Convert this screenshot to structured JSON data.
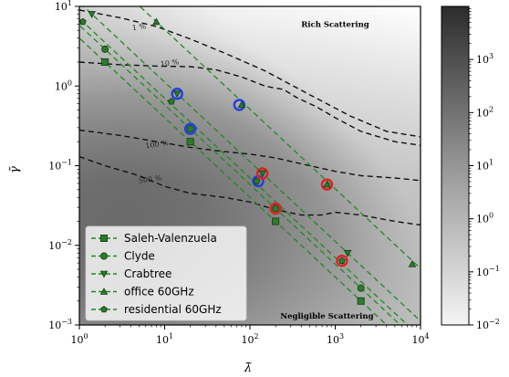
{
  "chart_data": {
    "type": "scatter",
    "xlabel": "λ̃",
    "ylabel": "γ̃",
    "xscale": "log",
    "yscale": "log",
    "xlim": [
      1,
      10000
    ],
    "ylim": [
      0.001,
      10
    ],
    "x_ticks": [
      {
        "value": 1,
        "base": "10",
        "exp": "0"
      },
      {
        "value": 10,
        "base": "10",
        "exp": "1"
      },
      {
        "value": 100,
        "base": "10",
        "exp": "2"
      },
      {
        "value": 1000,
        "base": "10",
        "exp": "3"
      },
      {
        "value": 10000,
        "base": "10",
        "exp": "4"
      }
    ],
    "y_ticks": [
      {
        "value": 0.001,
        "base": "10",
        "exp": "−3"
      },
      {
        "value": 0.01,
        "base": "10",
        "exp": "−2"
      },
      {
        "value": 0.1,
        "base": "10",
        "exp": "−1"
      },
      {
        "value": 1,
        "base": "10",
        "exp": "0"
      },
      {
        "value": 10,
        "base": "10",
        "exp": "1"
      }
    ],
    "region_labels": [
      {
        "text": "Rich Scattering",
        "x": 1000,
        "y": 5.5
      },
      {
        "text": "Negligible Scattering",
        "x": 800,
        "y": 0.0012
      }
    ],
    "contours": [
      {
        "label": "1 %",
        "label_at": [
          4.2,
          5.0
        ],
        "x": [
          1,
          3,
          8,
          20,
          50,
          150,
          500,
          1500,
          4000,
          10000
        ],
        "y": [
          9,
          7.2,
          5.6,
          3.9,
          2.6,
          1.55,
          0.78,
          0.42,
          0.27,
          0.23
        ]
      },
      {
        "label": "10 %",
        "label_at": [
          9,
          1.75
        ],
        "x": [
          1,
          3,
          8,
          20,
          40,
          80,
          150,
          250,
          350,
          600,
          1000,
          2000,
          5000,
          10000
        ],
        "y": [
          2.0,
          1.85,
          1.78,
          1.75,
          1.6,
          1.3,
          1.0,
          0.9,
          0.72,
          0.55,
          0.4,
          0.27,
          0.2,
          0.18
        ]
      },
      {
        "label": "100 %",
        "label_at": [
          6,
          0.165
        ],
        "x": [
          1,
          3,
          8,
          20,
          50,
          100,
          200,
          500,
          1000,
          2000,
          5000,
          10000
        ],
        "y": [
          0.28,
          0.24,
          0.2,
          0.17,
          0.15,
          0.14,
          0.125,
          0.1,
          0.085,
          0.075,
          0.07,
          0.065
        ]
      },
      {
        "label": "500 %",
        "label_at": [
          5,
          0.06
        ],
        "x": [
          1,
          2,
          5,
          10,
          20,
          50,
          100,
          200,
          400,
          700,
          1000,
          2000,
          5000,
          10000
        ],
        "y": [
          0.13,
          0.1,
          0.075,
          0.055,
          0.045,
          0.04,
          0.035,
          0.028,
          0.024,
          0.024,
          0.026,
          0.024,
          0.02,
          0.018
        ]
      }
    ],
    "series": [
      {
        "name": "Saleh-Valenzuela",
        "marker": "square",
        "points": [
          [
            2,
            2.0
          ],
          [
            20,
            0.2
          ],
          [
            200,
            0.02
          ],
          [
            2000,
            0.002
          ]
        ]
      },
      {
        "name": "Clyde",
        "marker": "circle",
        "points": [
          [
            2,
            2.9
          ],
          [
            20,
            0.29
          ],
          [
            200,
            0.029
          ],
          [
            2000,
            0.0029
          ]
        ]
      },
      {
        "name": "Crabtree",
        "marker": "triangle-down",
        "points": [
          [
            1.4,
            8.0
          ],
          [
            14,
            0.8
          ],
          [
            140,
            0.08
          ],
          [
            1400,
            0.008
          ]
        ]
      },
      {
        "name": "office 60GHz",
        "marker": "triangle-up",
        "points": [
          [
            8,
            6.4
          ],
          [
            80,
            0.58
          ],
          [
            800,
            0.058
          ],
          [
            8000,
            0.0058
          ]
        ]
      },
      {
        "name": "residential 60GHz",
        "marker": "pentagon",
        "points": [
          [
            1.1,
            6.4
          ],
          [
            12,
            0.64
          ],
          [
            120,
            0.064
          ],
          [
            1200,
            0.0064
          ]
        ]
      }
    ],
    "highlight_rings": {
      "blue": [
        [
          14,
          0.8
        ],
        [
          20,
          0.29
        ],
        [
          75,
          0.58
        ],
        [
          125,
          0.064
        ]
      ],
      "red": [
        [
          140,
          0.08
        ],
        [
          200,
          0.029
        ],
        [
          800,
          0.058
        ],
        [
          1200,
          0.0064
        ]
      ]
    },
    "legend_placement": "lower-left",
    "colorbar": {
      "scale": "log",
      "range": [
        0.01,
        10000
      ],
      "ticks": [
        {
          "value": 0.01,
          "base": "10",
          "exp": "−2"
        },
        {
          "value": 0.1,
          "base": "10",
          "exp": "−1"
        },
        {
          "value": 1,
          "base": "10",
          "exp": "0"
        },
        {
          "value": 10,
          "base": "10",
          "exp": "1"
        },
        {
          "value": 100,
          "base": "10",
          "exp": "2"
        },
        {
          "value": 1000,
          "base": "10",
          "exp": "3"
        }
      ],
      "low_color": "#f0f0f0",
      "high_color": "#2a2a2a"
    },
    "colors": {
      "series": "#2d7a2d",
      "fit_line": "#1f8a1f",
      "ring_blue": "#1f3fe0",
      "ring_red": "#e0201f"
    }
  }
}
